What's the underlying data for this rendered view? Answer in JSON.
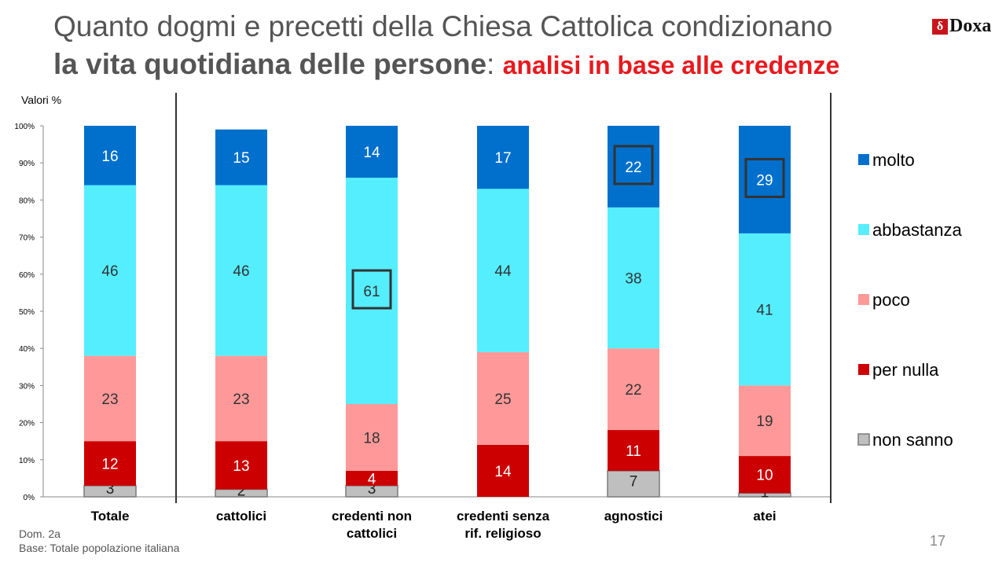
{
  "title": {
    "line1": "Quanto dogmi e precetti della Chiesa Cattolica condizionano",
    "line2_bold": "la vita quotidiana delle persone",
    "line2_sep": ":",
    "line2_red": "analisi in base alle credenze"
  },
  "logo": {
    "mark": "δ",
    "text": "Doxa"
  },
  "valori_label": "Valori %",
  "footer": {
    "dom": "Dom. 2a",
    "base": "Base: Totale popolazione italiana"
  },
  "page_number": "17",
  "chart_data": {
    "type": "bar",
    "stacked": true,
    "categories": [
      [
        "Totale"
      ],
      [
        "cattolici"
      ],
      [
        "credenti non",
        "cattolici"
      ],
      [
        "credenti senza",
        "rif. religioso"
      ],
      [
        "agnostici"
      ],
      [
        "atei"
      ]
    ],
    "series": [
      {
        "name": "non sanno",
        "color": "#bfbfbf",
        "values": [
          3,
          2,
          3,
          null,
          7,
          1
        ]
      },
      {
        "name": "per nulla",
        "color": "#cc0000",
        "values": [
          12,
          13,
          4,
          14,
          11,
          10
        ]
      },
      {
        "name": "poco",
        "color": "#ff9999",
        "values": [
          23,
          23,
          18,
          25,
          22,
          19
        ]
      },
      {
        "name": "abbastanza",
        "color": "#55eeff",
        "values": [
          46,
          46,
          61,
          44,
          38,
          41
        ]
      },
      {
        "name": "molto",
        "color": "#0070cc",
        "values": [
          16,
          15,
          14,
          17,
          22,
          29
        ]
      }
    ],
    "legend_order": [
      "molto",
      "abbastanza",
      "poco",
      "per nulla",
      "non sanno"
    ],
    "highlighted": [
      {
        "category_index": 2,
        "series": "abbastanza"
      },
      {
        "category_index": 4,
        "series": "molto"
      },
      {
        "category_index": 5,
        "series": "molto"
      }
    ],
    "yticks": [
      "0%",
      "10%",
      "20%",
      "30%",
      "40%",
      "50%",
      "60%",
      "70%",
      "80%",
      "90%",
      "100%"
    ],
    "ylim": [
      0,
      100
    ],
    "legend_position": "right"
  }
}
